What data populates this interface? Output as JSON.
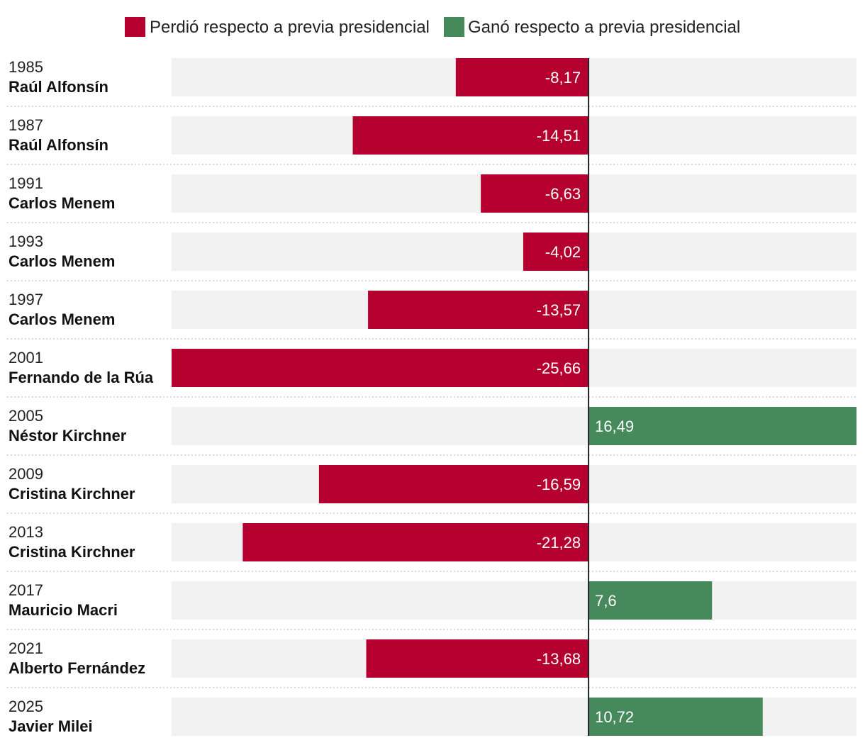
{
  "chart_data": {
    "type": "bar",
    "orientation": "horizontal",
    "legend": [
      {
        "label": "Perdió respecto a previa presidencial",
        "color": "#b5002f"
      },
      {
        "label": "Ganó respecto a previa presidencial",
        "color": "#468a5c"
      }
    ],
    "rows": [
      {
        "year": "1985",
        "name": "Raúl Alfonsín",
        "value": -8.17,
        "label": "-8,17"
      },
      {
        "year": "1987",
        "name": "Raúl Alfonsín",
        "value": -14.51,
        "label": "-14,51"
      },
      {
        "year": "1991",
        "name": "Carlos Menem",
        "value": -6.63,
        "label": "-6,63"
      },
      {
        "year": "1993",
        "name": "Carlos Menem",
        "value": -4.02,
        "label": "-4,02"
      },
      {
        "year": "1997",
        "name": "Carlos Menem",
        "value": -13.57,
        "label": "-13,57"
      },
      {
        "year": "2001",
        "name": "Fernando de la Rúa",
        "value": -25.66,
        "label": "-25,66"
      },
      {
        "year": "2005",
        "name": "Néstor Kirchner",
        "value": 16.49,
        "label": "16,49"
      },
      {
        "year": "2009",
        "name": "Cristina Kirchner",
        "value": -16.59,
        "label": "-16,59"
      },
      {
        "year": "2013",
        "name": "Cristina Kirchner",
        "value": -21.28,
        "label": "-21,28"
      },
      {
        "year": "2017",
        "name": "Mauricio Macri",
        "value": 7.6,
        "label": "7,6"
      },
      {
        "year": "2021",
        "name": "Alberto Fernández",
        "value": -13.68,
        "label": "-13,68"
      },
      {
        "year": "2025",
        "name": "Javier Milei",
        "value": 10.72,
        "label": "10,72"
      }
    ],
    "xlim": [
      -25.66,
      16.49
    ],
    "background_color": "#f2f2f2",
    "axis_color": "#222222"
  }
}
